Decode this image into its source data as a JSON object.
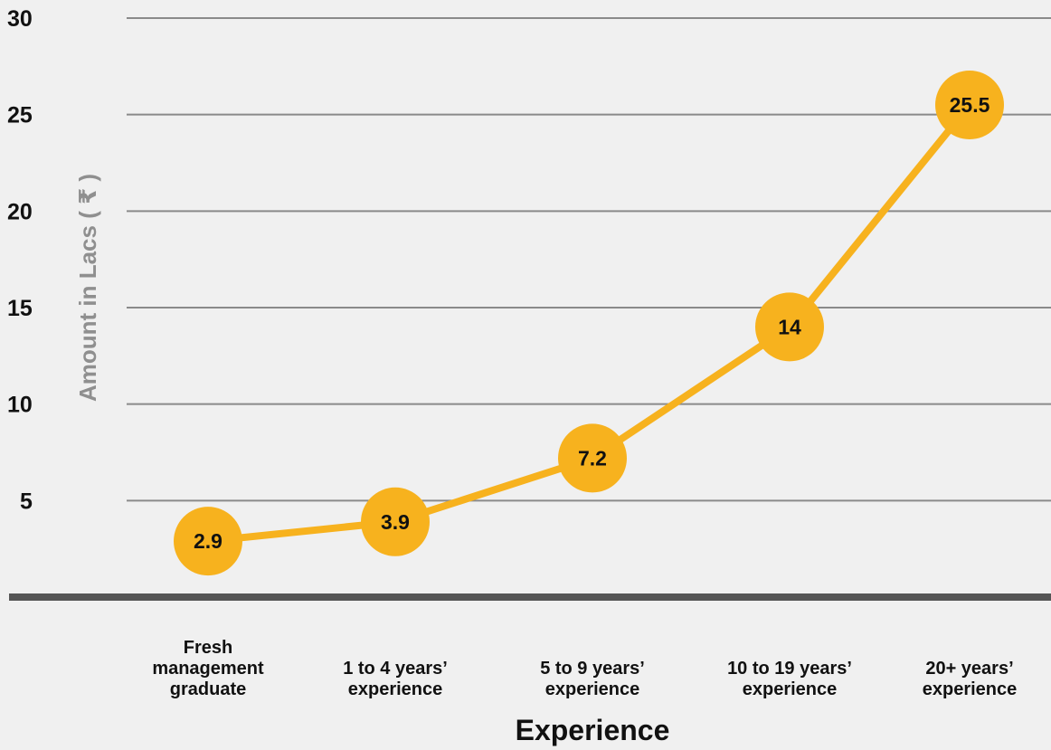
{
  "chart_data": {
    "type": "line",
    "title": "",
    "xlabel": "Experience",
    "ylabel": "Amount in Lacs ( ₹ )",
    "categories": [
      [
        "Fresh",
        "management",
        "graduate"
      ],
      [
        "1 to 4 years’",
        "experience"
      ],
      [
        "5 to 9 years’",
        "experience"
      ],
      [
        "10 to 19 years’",
        "experience"
      ],
      [
        "20+ years’",
        "experience"
      ]
    ],
    "values": [
      2.9,
      3.9,
      7.2,
      14,
      25.5
    ],
    "value_labels": [
      "2.9",
      "3.9",
      "7.2",
      "14",
      "25.5"
    ],
    "yticks": [
      5,
      10,
      15,
      20,
      25,
      30
    ],
    "ylim": [
      0,
      30
    ],
    "grid": true,
    "legend": "none",
    "colors": {
      "line": "#f7b21e",
      "marker": "#f7b21e",
      "grid": "#8a8a8a",
      "baseline": "#555555",
      "background": "#f0f0f0"
    }
  }
}
